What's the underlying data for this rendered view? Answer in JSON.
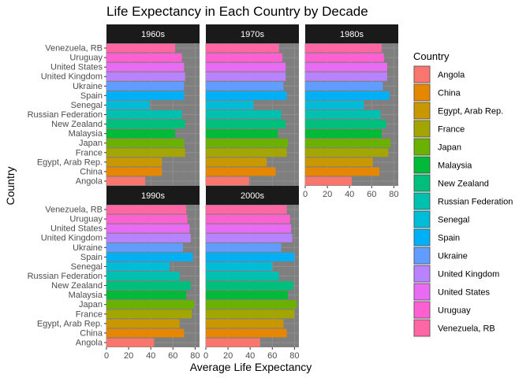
{
  "chart_data": {
    "type": "bar",
    "orientation": "horizontal",
    "title": "Life Expectancy in Each Country by Decade",
    "xlabel": "Average Life Expectancy",
    "ylabel": "Country",
    "xlim": [
      0,
      84
    ],
    "xticks": [
      0,
      20,
      40,
      60,
      80
    ],
    "grid": true,
    "legend_title": "Country",
    "legend_position": "right",
    "categories": [
      "Angola",
      "China",
      "Egypt, Arab Rep.",
      "France",
      "Japan",
      "Malaysia",
      "New Zealand",
      "Russian Federation",
      "Senegal",
      "Spain",
      "Ukraine",
      "United Kingdom",
      "United States",
      "Uruguay",
      "Venezuela, RB"
    ],
    "colors": [
      "#F8766D",
      "#E58700",
      "#C99800",
      "#A3A500",
      "#6BB100",
      "#00BA38",
      "#00BF7D",
      "#00C0AF",
      "#00BCD8",
      "#00B0F6",
      "#619CFF",
      "#B983FF",
      "#E76BF3",
      "#FD61D1",
      "#FF67A4"
    ],
    "panels": [
      {
        "label": "1960s",
        "values": [
          35,
          50,
          50,
          71,
          70,
          62,
          71,
          68,
          39,
          70,
          70,
          71,
          70,
          68,
          62
        ]
      },
      {
        "label": "1970s",
        "values": [
          39,
          63,
          55,
          73,
          74,
          65,
          72,
          68,
          43,
          73,
          70,
          72,
          72,
          69,
          66
        ]
      },
      {
        "label": "1980s",
        "values": [
          42,
          67,
          61,
          75,
          77,
          69,
          73,
          68,
          53,
          76,
          70,
          74,
          74,
          71,
          69
        ]
      },
      {
        "label": "1990s",
        "values": [
          43,
          70,
          66,
          77,
          79,
          72,
          76,
          66,
          57,
          78,
          69,
          76,
          75,
          73,
          72
        ]
      },
      {
        "label": "2000s",
        "values": [
          49,
          73,
          70,
          80,
          82,
          74,
          79,
          66,
          60,
          80,
          68,
          78,
          77,
          76,
          73
        ]
      }
    ]
  }
}
